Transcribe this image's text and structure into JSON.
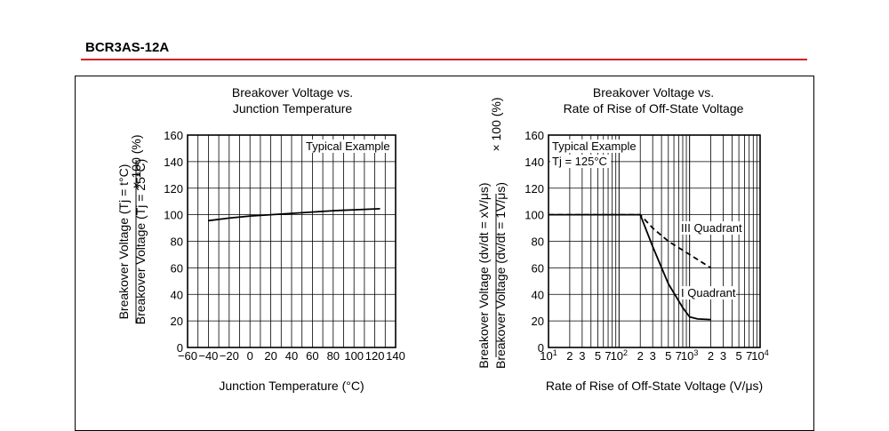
{
  "header": {
    "part_number": "BCR3AS-12A"
  },
  "colors": {
    "rule": "#d81f26",
    "ink": "#000000",
    "background": "#ffffff"
  },
  "chart_data": [
    {
      "type": "line",
      "title_lines": [
        "Breakover Voltage vs.",
        "Junction Temperature"
      ],
      "xlabel": "Junction Temperature  (°C)",
      "ylabel_numerator": "Breakover Voltage  (Tj = t°C)",
      "ylabel_denominator": "Breakover Voltage  (Tj = 25°C)",
      "ylabel_suffix": "× 100 (%)",
      "x_scale": "linear",
      "xlim": [
        -60,
        140
      ],
      "ylim": [
        0,
        160
      ],
      "x_ticks": [
        -60,
        -40,
        -20,
        0,
        20,
        40,
        60,
        80,
        100,
        120,
        140
      ],
      "x_tick_labels": [
        "−60",
        "−40",
        "−20",
        "0",
        "20",
        "40",
        "60",
        "80",
        "100",
        "120",
        "140"
      ],
      "y_ticks": [
        0,
        20,
        40,
        60,
        80,
        100,
        120,
        140,
        160
      ],
      "y_tick_labels": [
        "0",
        "20",
        "40",
        "60",
        "80",
        "100",
        "120",
        "140",
        "160"
      ],
      "grid": true,
      "annotations": [
        "Typical Example"
      ],
      "series": [
        {
          "style": "solid",
          "x": [
            -40,
            -20,
            0,
            20,
            40,
            60,
            80,
            100,
            125
          ],
          "y": [
            95.5,
            97.5,
            99,
            100,
            101,
            102,
            103,
            103.7,
            104.5
          ]
        }
      ]
    },
    {
      "type": "line",
      "title_lines": [
        "Breakover Voltage vs.",
        "Rate of Rise of Off-State Voltage"
      ],
      "xlabel": "Rate of Rise of Off-State Voltage  (V/μs)",
      "ylabel_numerator": "Breakover Voltage  (dv/dt = xV/μs)",
      "ylabel_denominator": "Breakover Voltage  (dv/dt = 1V/μs)",
      "ylabel_suffix": "× 100 (%)",
      "x_scale": "log",
      "xlim": [
        10,
        10000
      ],
      "ylim": [
        0,
        160
      ],
      "x_major_labels": [
        {
          "value": 10,
          "base": "10",
          "exp": "1"
        },
        {
          "value": 100,
          "base": "10",
          "exp": "2"
        },
        {
          "value": 1000,
          "base": "10",
          "exp": "3"
        },
        {
          "value": 10000,
          "base": "10",
          "exp": "4"
        }
      ],
      "x_minor_labels": [
        "2",
        "3",
        "5",
        "7"
      ],
      "y_ticks": [
        0,
        20,
        40,
        60,
        80,
        100,
        120,
        140,
        160
      ],
      "y_tick_labels": [
        "0",
        "20",
        "40",
        "60",
        "80",
        "100",
        "120",
        "140",
        "160"
      ],
      "grid": true,
      "annotations": [
        "Typical Example",
        "Tj = 125°C"
      ],
      "series": [
        {
          "name": "III Quadrant",
          "style": "dashed",
          "x": [
            10,
            200,
            300,
            500,
            1000,
            2000
          ],
          "y": [
            100,
            100,
            90,
            80,
            70,
            60
          ]
        },
        {
          "name": "I Quadrant",
          "style": "solid",
          "x": [
            10,
            200,
            300,
            500,
            800,
            1000,
            1300,
            2000
          ],
          "y": [
            100,
            100,
            76,
            48,
            30,
            23,
            21.5,
            21
          ]
        }
      ]
    }
  ]
}
